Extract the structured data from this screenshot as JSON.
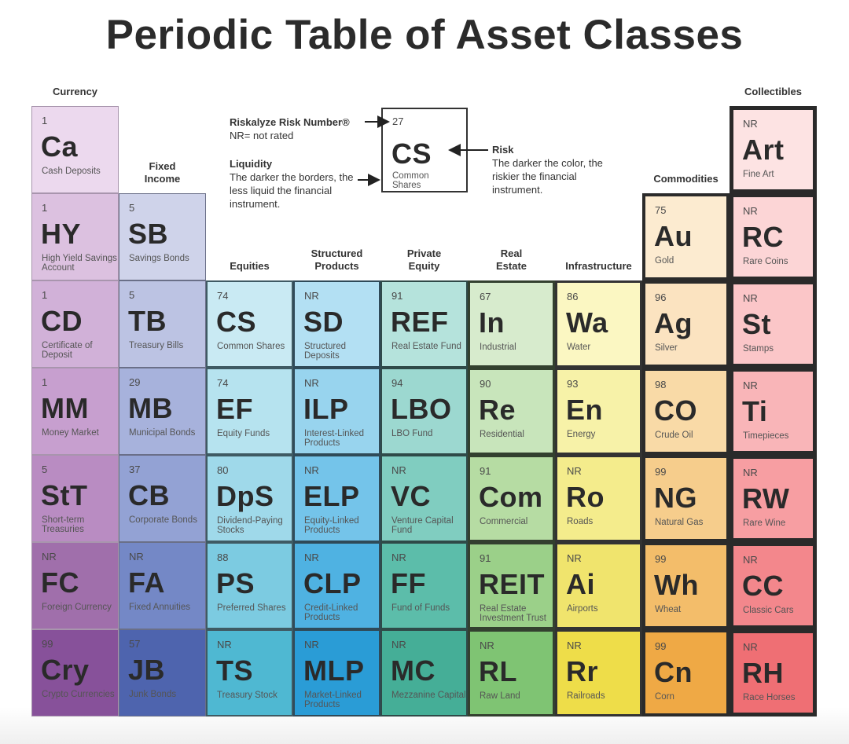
{
  "title": "Periodic Table of Asset Classes",
  "legend": {
    "risk_number_label": "Riskalyze Risk Number®",
    "nr_note": "NR= not rated",
    "liquidity_title": "Liquidity",
    "liquidity_text": "The darker the borders, the less liquid the financial instrument.",
    "risk_title": "Risk",
    "risk_text": "The darker the color, the riskier the financial instrument.",
    "sample": {
      "risk": "27",
      "symbol": "CS",
      "name": "Common Shares"
    }
  },
  "columns": [
    {
      "header": "Currency",
      "cells": [
        {
          "risk": "1",
          "symbol": "Ca",
          "name": "Cash Deposits",
          "color": "#ecd9ee"
        },
        {
          "risk": "1",
          "symbol": "HY",
          "name": "High Yield Savings Account",
          "color": "#dcc1e0"
        },
        {
          "risk": "1",
          "symbol": "CD",
          "name": "Certificate of Deposit",
          "color": "#d1b1d8"
        },
        {
          "risk": "1",
          "symbol": "MM",
          "name": "Money Market",
          "color": "#c79fcf"
        },
        {
          "risk": "5",
          "symbol": "StT",
          "name": "Short-term Treasuries",
          "color": "#b98cc2"
        },
        {
          "risk": "NR",
          "symbol": "FC",
          "name": "Foreign Currency",
          "color": "#a06fab"
        },
        {
          "risk": "99",
          "symbol": "Cry",
          "name": "Crypto Currencies",
          "color": "#87519a"
        }
      ]
    },
    {
      "header": "Fixed Income",
      "cells": [
        {
          "risk": "5",
          "symbol": "SB",
          "name": "Savings Bonds",
          "color": "#cfd3ea"
        },
        {
          "risk": "5",
          "symbol": "TB",
          "name": "Treasury Bills",
          "color": "#bcc3e3"
        },
        {
          "risk": "29",
          "symbol": "MB",
          "name": "Municipal Bonds",
          "color": "#a7b2dc"
        },
        {
          "risk": "37",
          "symbol": "CB",
          "name": "Corporate Bonds",
          "color": "#93a2d4"
        },
        {
          "risk": "NR",
          "symbol": "FA",
          "name": "Fixed Annuities",
          "color": "#7488c6"
        },
        {
          "risk": "57",
          "symbol": "JB",
          "name": "Junk Bonds",
          "color": "#4e64ae"
        }
      ]
    },
    {
      "header": "Equities",
      "cells": [
        {
          "risk": "74",
          "symbol": "CS",
          "name": "Common Shares",
          "color": "#c9eaf3"
        },
        {
          "risk": "74",
          "symbol": "EF",
          "name": "Equity Funds",
          "color": "#b6e3ef"
        },
        {
          "risk": "80",
          "symbol": "DpS",
          "name": "Dividend-Paying Stocks",
          "color": "#9fd9ea"
        },
        {
          "risk": "88",
          "symbol": "PS",
          "name": "Preferred Shares",
          "color": "#7ccbe1"
        },
        {
          "risk": "NR",
          "symbol": "TS",
          "name": "Treasury Stock",
          "color": "#4fb8d2"
        }
      ]
    },
    {
      "header": "Structured Products",
      "cells": [
        {
          "risk": "NR",
          "symbol": "SD",
          "name": "Structured Deposits",
          "color": "#b3e0f3"
        },
        {
          "risk": "NR",
          "symbol": "ILP",
          "name": "Interest-Linked Products",
          "color": "#98d4ee"
        },
        {
          "risk": "NR",
          "symbol": "ELP",
          "name": "Equity-Linked Products",
          "color": "#74c4ea"
        },
        {
          "risk": "NR",
          "symbol": "CLP",
          "name": "Credit-Linked Products",
          "color": "#4fb2e2"
        },
        {
          "risk": "NR",
          "symbol": "MLP",
          "name": "Market-Linked Products",
          "color": "#2a9cd6"
        }
      ]
    },
    {
      "header": "Private Equity",
      "cells": [
        {
          "risk": "91",
          "symbol": "REF",
          "name": "Real Estate Fund",
          "color": "#b5e3dc"
        },
        {
          "risk": "94",
          "symbol": "LBO",
          "name": "LBO Fund",
          "color": "#9cd8d0"
        },
        {
          "risk": "NR",
          "symbol": "VC",
          "name": "Venture Capital Fund",
          "color": "#80cdc0"
        },
        {
          "risk": "NR",
          "symbol": "FF",
          "name": "Fund of Funds",
          "color": "#5cbdaa"
        },
        {
          "risk": "NR",
          "symbol": "MC",
          "name": "Mezzanine Capital",
          "color": "#45ae97"
        }
      ]
    },
    {
      "header": "Real Estate",
      "cells": [
        {
          "risk": "67",
          "symbol": "In",
          "name": "Industrial",
          "color": "#d7ebcd"
        },
        {
          "risk": "90",
          "symbol": "Re",
          "name": "Residential",
          "color": "#c8e5bb"
        },
        {
          "risk": "91",
          "symbol": "Com",
          "name": "Commercial",
          "color": "#b6dca3"
        },
        {
          "risk": "91",
          "symbol": "REIT",
          "name": "Real Estate Investment Trust",
          "color": "#9bd089"
        },
        {
          "risk": "NR",
          "symbol": "RL",
          "name": "Raw Land",
          "color": "#7fc473"
        }
      ]
    },
    {
      "header": "Infrastructure",
      "cells": [
        {
          "risk": "86",
          "symbol": "Wa",
          "name": "Water",
          "color": "#fbf7c2"
        },
        {
          "risk": "93",
          "symbol": "En",
          "name": "Energy",
          "color": "#f7f2a8"
        },
        {
          "risk": "NR",
          "symbol": "Ro",
          "name": "Roads",
          "color": "#f4ec8c"
        },
        {
          "risk": "NR",
          "symbol": "Ai",
          "name": "Airports",
          "color": "#f0e46d"
        },
        {
          "risk": "NR",
          "symbol": "Rr",
          "name": "Railroads",
          "color": "#eedd49"
        }
      ]
    },
    {
      "header": "Commodities",
      "cells": [
        {
          "risk": "75",
          "symbol": "Au",
          "name": "Gold",
          "color": "#fcebd0"
        },
        {
          "risk": "96",
          "symbol": "Ag",
          "name": "Silver",
          "color": "#fbe3c0"
        },
        {
          "risk": "98",
          "symbol": "CO",
          "name": "Crude Oil",
          "color": "#f9daa7"
        },
        {
          "risk": "99",
          "symbol": "NG",
          "name": "Natural Gas",
          "color": "#f6cd8c"
        },
        {
          "risk": "99",
          "symbol": "Wh",
          "name": "Wheat",
          "color": "#f3bd6a"
        },
        {
          "risk": "99",
          "symbol": "Cn",
          "name": "Corn",
          "color": "#efa945"
        }
      ]
    },
    {
      "header": "Collectibles",
      "cells": [
        {
          "risk": "NR",
          "symbol": "Art",
          "name": "Fine Art",
          "color": "#fde3e3"
        },
        {
          "risk": "NR",
          "symbol": "RC",
          "name": "Rare Coins",
          "color": "#fcd5d6"
        },
        {
          "risk": "NR",
          "symbol": "St",
          "name": "Stamps",
          "color": "#fbc6c8"
        },
        {
          "risk": "NR",
          "symbol": "Ti",
          "name": "Timepieces",
          "color": "#f9b5b8"
        },
        {
          "risk": "NR",
          "symbol": "RW",
          "name": "Rare Wine",
          "color": "#f79ea2"
        },
        {
          "risk": "NR",
          "symbol": "CC",
          "name": "Classic Cars",
          "color": "#f3878c"
        },
        {
          "risk": "NR",
          "symbol": "RH",
          "name": "Race Horses",
          "color": "#ef6f74"
        }
      ]
    }
  ]
}
